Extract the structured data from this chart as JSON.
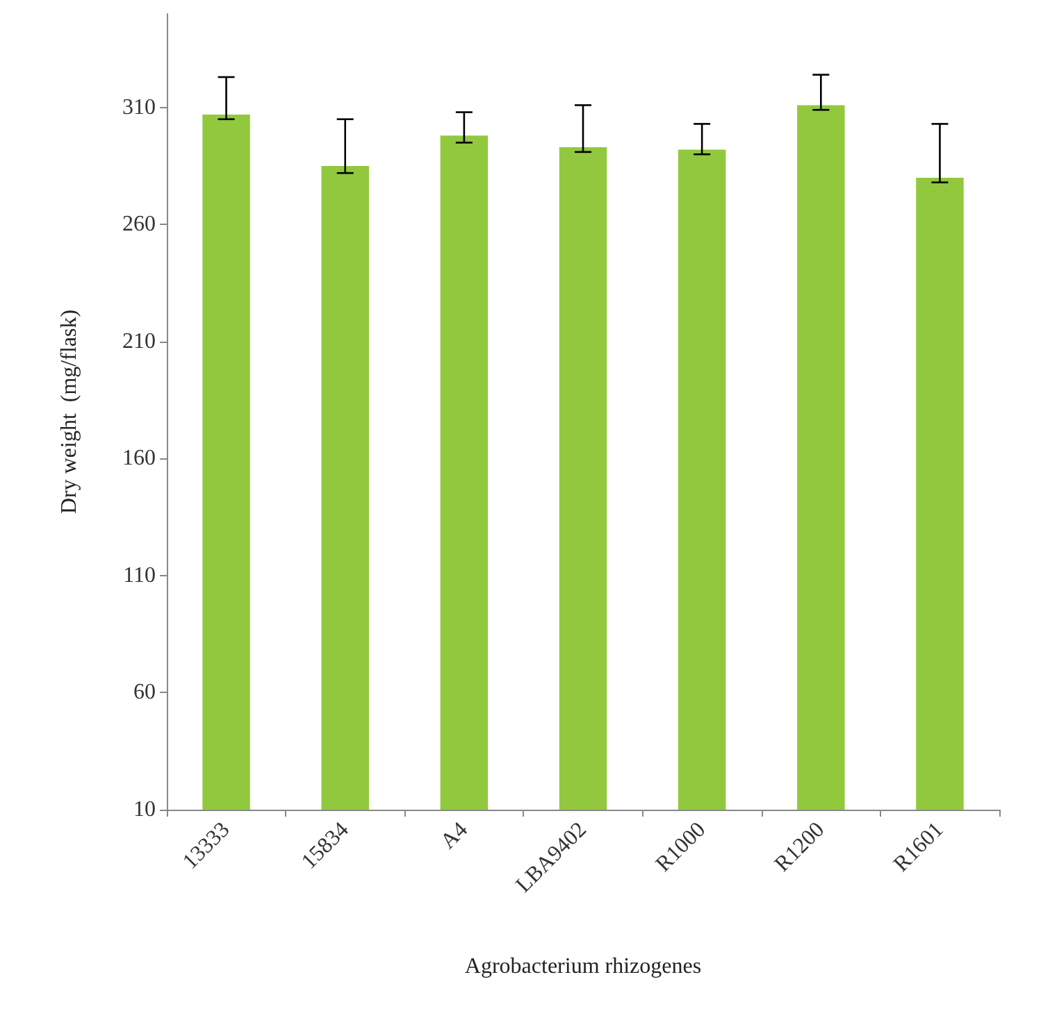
{
  "chart_data": {
    "type": "bar",
    "xlabel": "Agrobacterium rhizogenes",
    "ylabel": "Dry weight  (mg/flask)",
    "categories": [
      "13333",
      "15834",
      "A4",
      "LBA9402",
      "R1000",
      "R1200",
      "R1601"
    ],
    "values": [
      307,
      285,
      298,
      293,
      292,
      311,
      280
    ],
    "errors": [
      [
        305,
        323
      ],
      [
        282,
        305
      ],
      [
        295,
        308
      ],
      [
        291,
        311
      ],
      [
        290,
        303
      ],
      [
        309,
        324
      ],
      [
        278,
        303
      ]
    ],
    "color": "#92c83e",
    "ylim": [
      10,
      350
    ],
    "yticks": [
      10,
      60,
      110,
      160,
      210,
      260,
      310
    ],
    "grid": false
  }
}
